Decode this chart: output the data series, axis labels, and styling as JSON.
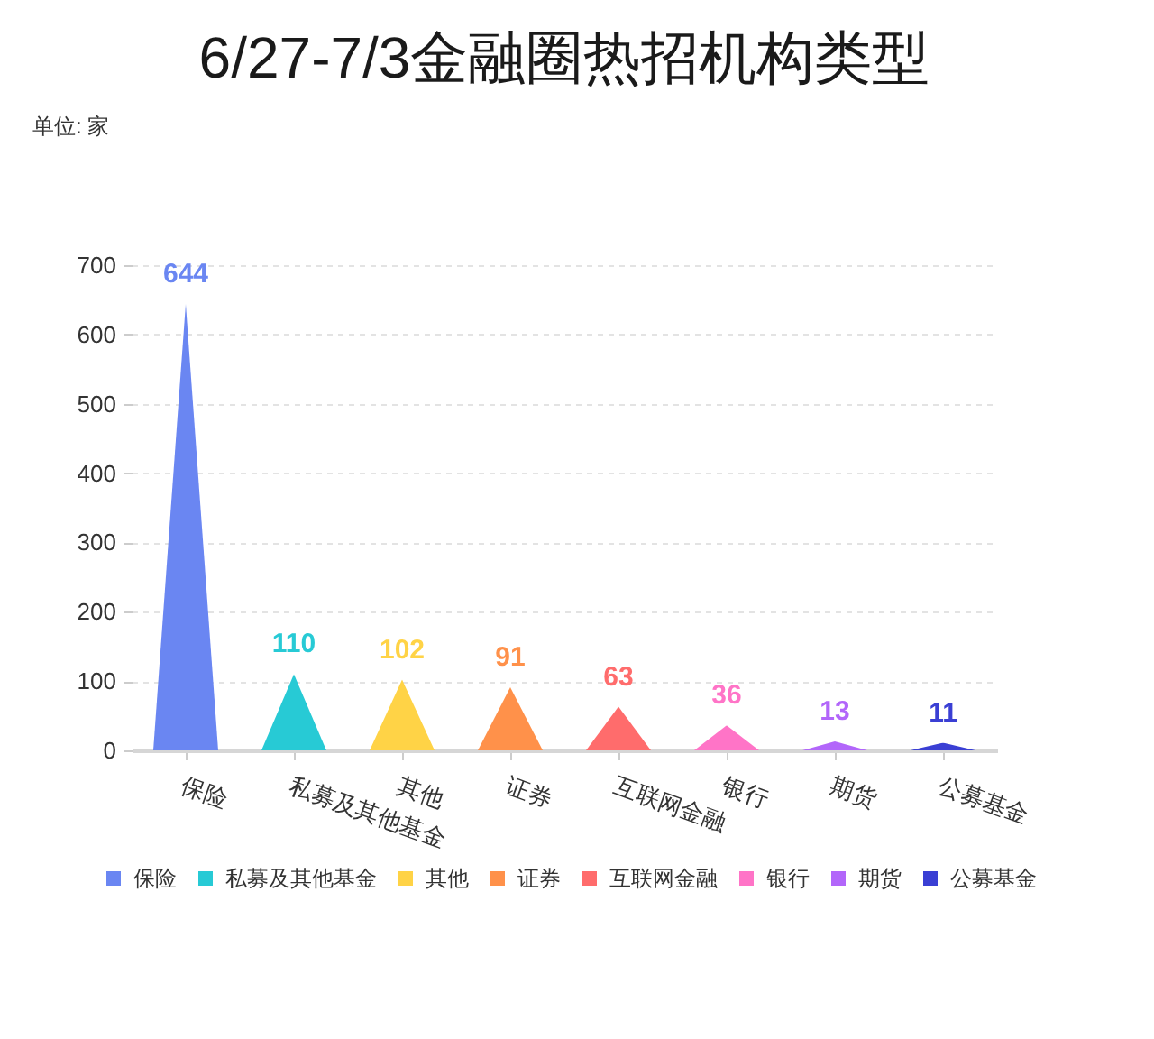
{
  "chart_data": {
    "type": "bar",
    "title": "6/27-7/3金融圈热招机构类型",
    "annotations": [
      "单位: 家"
    ],
    "categories": [
      "保险",
      "私募及其他基金",
      "其他",
      "证券",
      "互联网金融",
      "银行",
      "期货",
      "公募基金"
    ],
    "stacked": true,
    "series": [
      {
        "name": "保险",
        "color": "#6a86f2",
        "values": [
          644,
          null,
          null,
          null,
          null,
          null,
          null,
          null
        ]
      },
      {
        "name": "私募及其他基金",
        "color": "#27cad5",
        "values": [
          null,
          110,
          null,
          null,
          null,
          null,
          null,
          null
        ]
      },
      {
        "name": "其他",
        "color": "#ffd346",
        "values": [
          null,
          null,
          102,
          null,
          null,
          null,
          null,
          null
        ]
      },
      {
        "name": "证券",
        "color": "#ff914a",
        "values": [
          null,
          null,
          null,
          91,
          null,
          null,
          null,
          null
        ]
      },
      {
        "name": "互联网金融",
        "color": "#ff6c6c",
        "values": [
          null,
          null,
          null,
          null,
          63,
          null,
          null,
          null
        ]
      },
      {
        "name": "银行",
        "color": "#ff74c7",
        "values": [
          null,
          null,
          null,
          null,
          null,
          36,
          null,
          null
        ]
      },
      {
        "name": "期货",
        "color": "#b266fa",
        "values": [
          null,
          null,
          null,
          null,
          null,
          null,
          13,
          null
        ]
      },
      {
        "name": "公募基金",
        "color": "#3a3fd4",
        "values": [
          null,
          null,
          null,
          null,
          null,
          null,
          null,
          11
        ]
      }
    ],
    "ylim": [
      0,
      700
    ],
    "yticks": [
      0,
      100,
      200,
      300,
      400,
      500,
      600,
      700
    ],
    "grid": "y",
    "legend": "bottom",
    "data_labels": true
  }
}
